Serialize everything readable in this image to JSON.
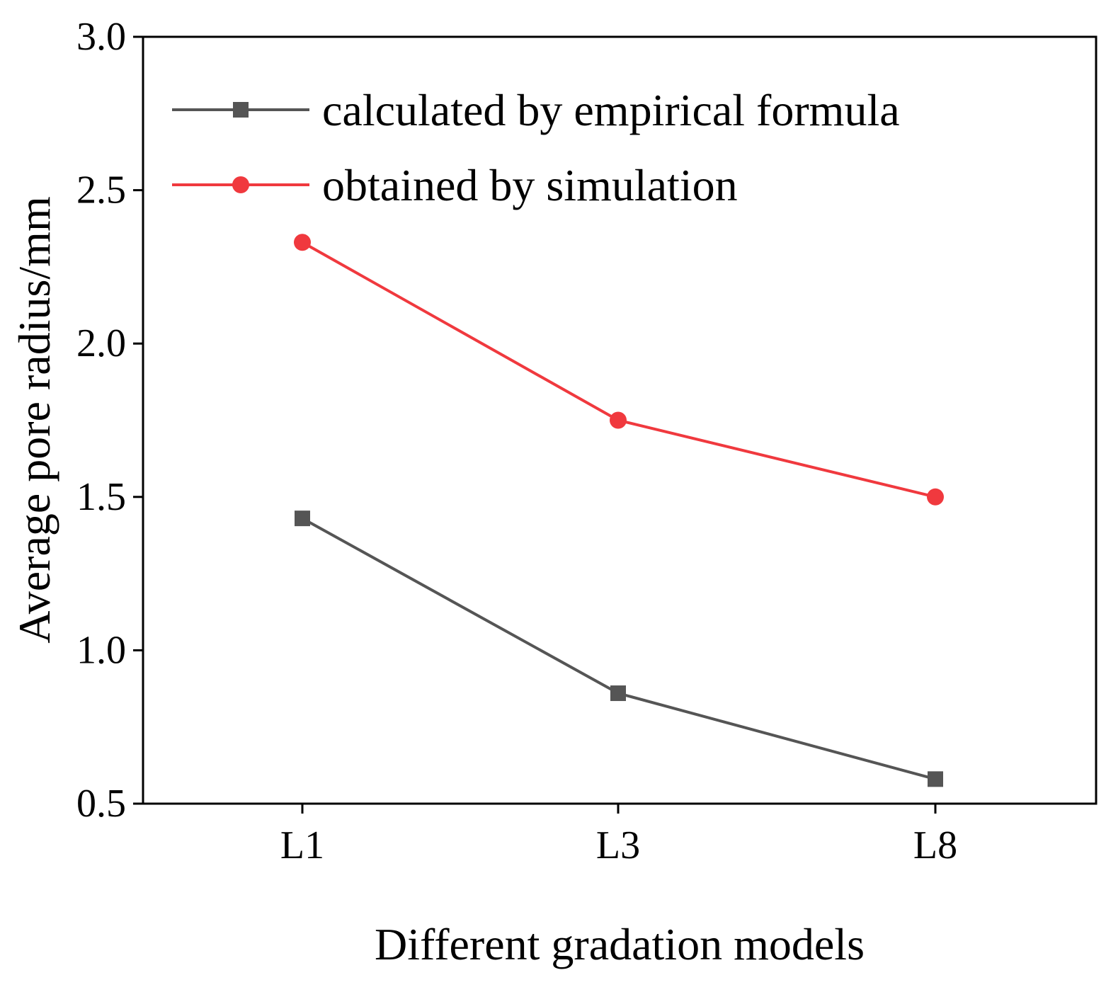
{
  "chart_data": {
    "type": "line",
    "title": "",
    "xlabel": "Different gradation models",
    "ylabel": "Average pore radius/mm",
    "categories": [
      "L1",
      "L3",
      "L8"
    ],
    "ylim": [
      0.5,
      3.0
    ],
    "yticks": [
      0.5,
      1.0,
      1.5,
      2.0,
      2.5,
      3.0
    ],
    "ytick_labels": [
      "0.5",
      "1.0",
      "1.5",
      "2.0",
      "2.5",
      "3.0"
    ],
    "grid": false,
    "legend_position": "top-left",
    "series": [
      {
        "name": "calculated by empirical formula",
        "marker": "square",
        "color": "#555555",
        "values": [
          1.43,
          0.86,
          0.58
        ]
      },
      {
        "name": "obtained by simulation",
        "marker": "circle",
        "color": "#f0393e",
        "values": [
          2.33,
          1.75,
          1.5
        ]
      }
    ]
  }
}
